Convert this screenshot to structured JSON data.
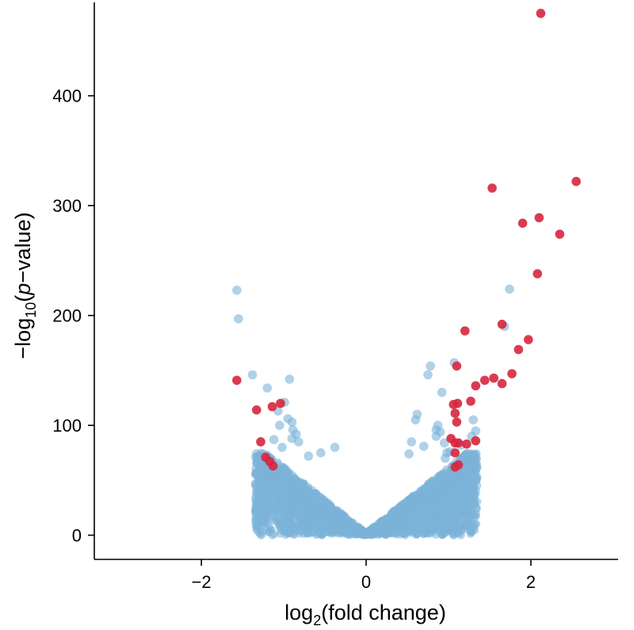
{
  "chart_data": {
    "type": "scatter",
    "title": "",
    "xlabel": {
      "prefix": "log",
      "subscript": "2",
      "rest": "(fold change)"
    },
    "ylabel": {
      "prefix": "−log",
      "subscript": "10",
      "open": "(",
      "italic": "p",
      "rest": "−value)"
    },
    "xlim": [
      -3.3,
      3.3
    ],
    "ylim": [
      -22,
      485
    ],
    "x_ticks": [
      {
        "value": -2,
        "label": "−2"
      },
      {
        "value": 0,
        "label": "0"
      },
      {
        "value": 2,
        "label": "2"
      }
    ],
    "y_ticks": [
      {
        "value": 0,
        "label": "0"
      },
      {
        "value": 100,
        "label": "100"
      },
      {
        "value": 200,
        "label": "200"
      },
      {
        "value": 300,
        "label": "300"
      },
      {
        "value": 400,
        "label": "400"
      }
    ],
    "grid": false,
    "legend": "none",
    "colors": {
      "significant": "#d7263d",
      "not_significant": "#7bb3d9"
    },
    "dense_cloud": {
      "count": 2600,
      "x_extent": 1.35,
      "y_per_abs_x": 60,
      "y_cap": 75
    },
    "series": [
      {
        "color_key": "not_significant",
        "points": [
          [
            -1.57,
            223
          ],
          [
            -1.55,
            197
          ],
          [
            -1.38,
            146
          ],
          [
            -1.2,
            134
          ],
          [
            -0.93,
            142
          ],
          [
            -1.07,
            113
          ],
          [
            -1.05,
            100
          ],
          [
            -0.99,
            121
          ],
          [
            -0.95,
            106
          ],
          [
            -0.9,
            103
          ],
          [
            -0.89,
            96
          ],
          [
            -0.85,
            92
          ],
          [
            -0.82,
            85
          ],
          [
            -0.9,
            88
          ],
          [
            -1.12,
            87
          ],
          [
            -1.02,
            80
          ],
          [
            -0.38,
            80
          ],
          [
            -0.55,
            75
          ],
          [
            -0.7,
            72
          ],
          [
            0.78,
            154
          ],
          [
            0.75,
            146
          ],
          [
            1.07,
            157
          ],
          [
            0.92,
            130
          ],
          [
            0.87,
            100
          ],
          [
            0.85,
            96
          ],
          [
            0.9,
            94
          ],
          [
            0.62,
            110
          ],
          [
            0.6,
            105
          ],
          [
            0.55,
            85
          ],
          [
            0.7,
            81
          ],
          [
            0.85,
            90
          ],
          [
            0.95,
            84
          ],
          [
            1.3,
            105
          ],
          [
            1.28,
            90
          ],
          [
            1.68,
            190
          ],
          [
            1.74,
            224
          ],
          [
            0.98,
            75
          ],
          [
            0.96,
            70
          ],
          [
            0.52,
            74
          ],
          [
            1.33,
            95
          ],
          [
            1.15,
            82
          ],
          [
            1.02,
            76
          ]
        ]
      },
      {
        "color_key": "significant",
        "points": [
          [
            2.12,
            475
          ],
          [
            1.53,
            316
          ],
          [
            2.55,
            322
          ],
          [
            2.1,
            289
          ],
          [
            1.9,
            284
          ],
          [
            2.35,
            274
          ],
          [
            2.08,
            238
          ],
          [
            1.65,
            192
          ],
          [
            1.97,
            178
          ],
          [
            1.85,
            169
          ],
          [
            1.2,
            186
          ],
          [
            1.1,
            154
          ],
          [
            1.77,
            147
          ],
          [
            1.55,
            143
          ],
          [
            1.65,
            138
          ],
          [
            1.44,
            141
          ],
          [
            1.33,
            136
          ],
          [
            1.27,
            122
          ],
          [
            1.06,
            119
          ],
          [
            1.11,
            120
          ],
          [
            1.08,
            111
          ],
          [
            1.1,
            103
          ],
          [
            1.03,
            88
          ],
          [
            1.08,
            84
          ],
          [
            1.12,
            84
          ],
          [
            1.22,
            83
          ],
          [
            1.33,
            86
          ],
          [
            1.08,
            75
          ],
          [
            1.12,
            64
          ],
          [
            1.08,
            62
          ],
          [
            -1.57,
            141
          ],
          [
            -1.33,
            114
          ],
          [
            -1.04,
            120
          ],
          [
            -1.14,
            117
          ],
          [
            -1.28,
            85
          ],
          [
            -1.22,
            71
          ],
          [
            -1.17,
            67
          ],
          [
            -1.13,
            63
          ]
        ]
      }
    ]
  }
}
